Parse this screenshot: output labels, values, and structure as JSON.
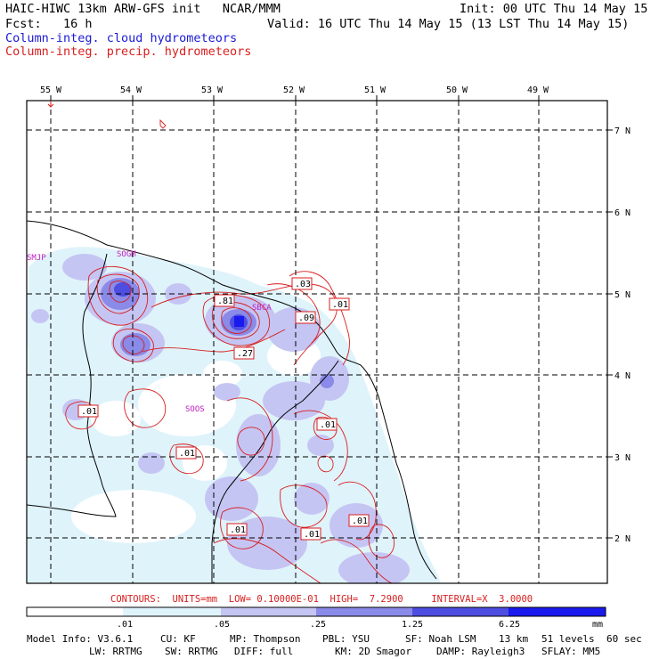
{
  "header": {
    "title_left": "HAIC-HIWC 13km ARW-GFS init   NCAR/MMM",
    "init": "Init: 00 UTC Thu 14 May 15",
    "fcst": "Fcst:   16 h",
    "valid": "Valid: 16 UTC Thu 14 May 15 (13 LST Thu 14 May 15)",
    "legend_cloud": "Column-integ. cloud hydrometeors",
    "legend_precip": "Column-integ. precip. hydrometeors"
  },
  "colors": {
    "cloud_legend": "#1a1ad6",
    "precip_contour": "#d81e1e",
    "station_label": "#c020c0",
    "shade_1": "#dff3fb",
    "shade_2": "#c5c5f3",
    "shade_3": "#8a8ae8",
    "shade_4": "#4d4de2",
    "shade_5": "#1a1aee"
  },
  "map": {
    "lon_labels": [
      "55 W",
      "54 W",
      "53 W",
      "52 W",
      "51 W",
      "50 W",
      "49 W"
    ],
    "lat_labels": [
      "7 N",
      "6 N",
      "5 N",
      "4 N",
      "3 N",
      "2 N"
    ],
    "stations": [
      "SMJP",
      "SOGM",
      "SBCA",
      "SOOS"
    ],
    "contour_labels": [
      ".03",
      ".01",
      ".81",
      ".09",
      ".27",
      ".01",
      ".01",
      ".01",
      ".01",
      ".01",
      ".01"
    ]
  },
  "contours_line": "CONTOURS:  UNITS=mm  LOW= 0.10000E-01  HIGH=  7.2900     INTERVAL=X  3.0000",
  "colorbar": {
    "ticks": [
      ".01",
      ".05",
      ".25",
      "1.25",
      "6.25"
    ],
    "unit": "mm"
  },
  "model_info": {
    "line1": [
      "Model Info: V3.6.1",
      "CU: KF",
      "MP: Thompson",
      "PBL: YSU",
      "SF: Noah LSM",
      "13 km",
      "51 levels",
      "60 sec"
    ],
    "line2": [
      "LW: RRTMG",
      "SW: RRTMG",
      "DIFF: full",
      "KM: 2D Smagor",
      "DAMP: Rayleigh3",
      "SFLAY: MM5"
    ]
  }
}
